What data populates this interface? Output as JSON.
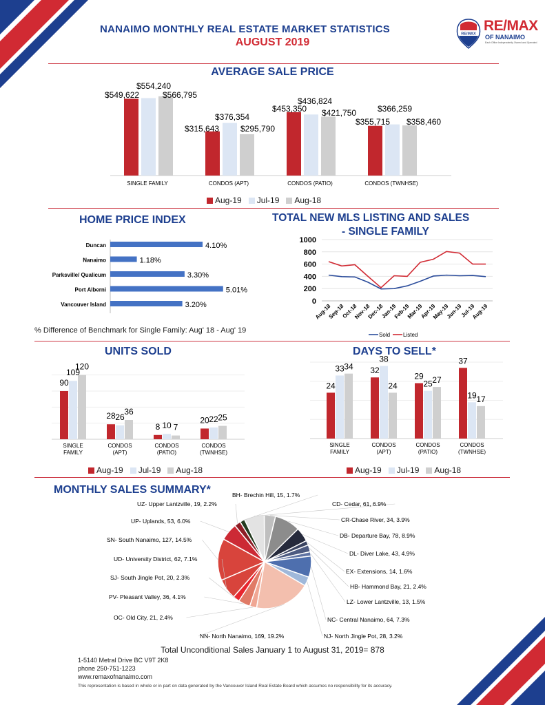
{
  "header": {
    "title": "NANAIMO MONTHLY REAL ESTATE MARKET STATISTICS",
    "subtitle": "AUGUST 2019",
    "logo_text": "RE/MAX",
    "logo_sub": "OF NANAIMO",
    "logo_tagline": "Each Office Independently Owned and Operated"
  },
  "colors": {
    "aug19": "#c1272d",
    "jul19": "#dce6f4",
    "aug18": "#cfcfcf",
    "navy": "#1d3f8f",
    "red": "#d12a33"
  },
  "avg_price": {
    "title": "AVERAGE SALE PRICE",
    "legend": [
      "Aug-19",
      "Jul-19",
      "Aug-18"
    ]
  },
  "hpi": {
    "title": "HOME PRICE INDEX",
    "footnote": "% Difference of Benchmark for Single Family: Aug' 18 - Aug' 19"
  },
  "mls": {
    "title_line1": "TOTAL NEW MLS LISTING AND SALES",
    "title_line2": "- SINGLE FAMILY"
  },
  "units_sold": {
    "title": "UNITS SOLD"
  },
  "days_to_sell": {
    "title": "DAYS TO SELL*"
  },
  "summary": {
    "title": "MONTHLY SALES SUMMARY*",
    "total": "Total Unconditional Sales January 1 to August 31, 2019= 878"
  },
  "footer": {
    "address": "1-5140 Metral Drive BC V9T 2K8",
    "phone": "phone 250-751-1223",
    "web": "www.remaxofnanaimo.com",
    "disclaimer": "This representation is based in whole or in part on data generated by the Vancouver Island Real Estate Board which assumes no responsibility for its accuracy."
  },
  "chart_data": [
    {
      "id": "avg_price",
      "type": "bar",
      "title": "AVERAGE SALE PRICE",
      "categories": [
        "SINGLE FAMILY",
        "CONDOS (APT)",
        "CONDOS (PATIO)",
        "CONDOS (TWNHSE)"
      ],
      "series": [
        {
          "name": "Aug-19",
          "values": [
            549622,
            315643,
            453350,
            355715
          ],
          "labels": [
            "$549,622",
            "$315,643",
            "$453,350",
            "$355,715"
          ]
        },
        {
          "name": "Jul-19",
          "values": [
            554240,
            376354,
            436824,
            366259
          ],
          "labels": [
            "$554,240",
            "$376,354",
            "$436,824",
            "$366,259"
          ]
        },
        {
          "name": "Aug-18",
          "values": [
            566795,
            295790,
            421750,
            358460
          ],
          "labels": [
            "$566,795",
            "$295,790",
            "$421,750",
            "$358,460"
          ]
        }
      ],
      "ylim": [
        0,
        650000
      ]
    },
    {
      "id": "hpi",
      "type": "bar",
      "orientation": "horizontal",
      "title": "HOME PRICE INDEX",
      "categories": [
        "Duncan",
        "Nanaimo",
        "Parksville/ Qualicum",
        "Port Alberni",
        "Vancouver Island"
      ],
      "values": [
        4.1,
        1.18,
        3.3,
        5.01,
        3.2
      ],
      "labels": [
        "4.10%",
        "1.18%",
        "3.30%",
        "5.01%",
        "3.20%"
      ],
      "xlim": [
        0,
        5.2
      ]
    },
    {
      "id": "mls",
      "type": "line",
      "title": "TOTAL NEW MLS LISTING AND SALES - SINGLE FAMILY",
      "categories": [
        "Aug-18",
        "Sep-18",
        "Oct-18",
        "Nov-18",
        "Dec-18",
        "Jan-19",
        "Feb-19",
        "Mar-19",
        "Apr-19",
        "May-19",
        "Jun-19",
        "Jul-19",
        "Aug-19"
      ],
      "series": [
        {
          "name": "Sold",
          "color": "#2b4c9b",
          "values": [
            420,
            395,
            390,
            305,
            195,
            200,
            245,
            320,
            405,
            420,
            410,
            415,
            395
          ]
        },
        {
          "name": "Listed",
          "color": "#d12a33",
          "values": [
            640,
            570,
            590,
            400,
            215,
            410,
            400,
            630,
            680,
            805,
            780,
            600,
            600
          ]
        }
      ],
      "yticks": [
        "1000",
        "800",
        "600",
        "400",
        "200",
        "0"
      ],
      "ylim": [
        0,
        1000
      ]
    },
    {
      "id": "units_sold",
      "type": "bar",
      "title": "UNITS SOLD",
      "categories": [
        "SINGLE FAMILY",
        "CONDOS (APT)",
        "CONDOS (PATIO)",
        "CONDOS (TWNHSE)"
      ],
      "series": [
        {
          "name": "Aug-19",
          "values": [
            90,
            28,
            8,
            20
          ]
        },
        {
          "name": "Jul-19",
          "values": [
            109,
            26,
            10,
            22
          ]
        },
        {
          "name": "Aug-18",
          "values": [
            120,
            36,
            7,
            25
          ]
        }
      ],
      "ylim": [
        0,
        135
      ]
    },
    {
      "id": "days_to_sell",
      "type": "bar",
      "title": "DAYS TO SELL*",
      "categories": [
        "SINGLE FAMILY",
        "CONDOS (APT)",
        "CONDOS (PATIO)",
        "CONDOS (TWNHSE)"
      ],
      "series": [
        {
          "name": "Aug-19",
          "values": [
            24,
            32,
            29,
            37
          ]
        },
        {
          "name": "Jul-19",
          "values": [
            33,
            38,
            25,
            19
          ]
        },
        {
          "name": "Aug-18",
          "values": [
            34,
            24,
            27,
            17
          ]
        }
      ],
      "ylim": [
        0,
        40
      ]
    },
    {
      "id": "summary",
      "type": "pie",
      "title": "MONTHLY SALES SUMMARY*",
      "slices": [
        {
          "label": "BH- Brechin Hill, 15, 1.7%",
          "value": 15,
          "color": "#233a1f"
        },
        {
          "label": "CD- Cedar, 61, 6.9%",
          "value": 61,
          "color": "#e3e3e3"
        },
        {
          "label": "CR-Chase River, 34, 3.9%",
          "value": 34,
          "color": "#bfbfbf"
        },
        {
          "label": "DB- Departure Bay, 78, 8.9%",
          "value": 78,
          "color": "#8c8c8c"
        },
        {
          "label": "DL- Diver Lake, 43, 4.9%",
          "value": 43,
          "color": "#262a3c"
        },
        {
          "label": "EX- Extensions, 14, 1.6%",
          "value": 14,
          "color": "#3a4360"
        },
        {
          "label": "HB- Hammond Bay, 21, 2.4%",
          "value": 21,
          "color": "#4d5a80"
        },
        {
          "label": "LZ- Lower Lantzville, 13, 1.5%",
          "value": 13,
          "color": "#5f73a3"
        },
        {
          "label": "NC- Central Nanaimo, 64, 7.3%",
          "value": 64,
          "color": "#4e6fae"
        },
        {
          "label": "NJ- North Jingle Pot, 28, 3.2%",
          "value": 28,
          "color": "#9fb8da"
        },
        {
          "label": "NN- North Nanaimo, 169, 19.2%",
          "value": 169,
          "color": "#f3bfae"
        },
        {
          "label": "OC- Old City, 21, 2.4%",
          "value": 21,
          "color": "#f0a794"
        },
        {
          "label": "PV- Pleasant Valley, 36, 4.1%",
          "value": 36,
          "color": "#e07a66"
        },
        {
          "label": "SJ- South Jingle Pot, 20, 2.3%",
          "value": 20,
          "color": "#e8262e"
        },
        {
          "label": "UD- University District, 62, 7.1%",
          "value": 62,
          "color": "#d8443c"
        },
        {
          "label": "SN- South Nanaimo, 127, 14.5%",
          "value": 127,
          "color": "#d8443c"
        },
        {
          "label": "UP- Uplands, 53, 6.0%",
          "value": 53,
          "color": "#cc2a35"
        },
        {
          "label": "UZ- Upper Lantzville, 19, 2.2%",
          "value": 19,
          "color": "#8e1d25"
        }
      ]
    }
  ]
}
